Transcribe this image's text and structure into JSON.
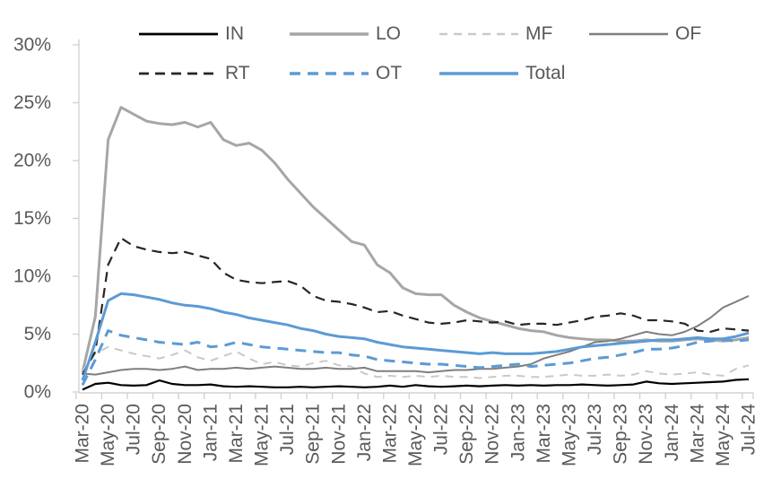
{
  "chart_data": {
    "type": "line",
    "title": "",
    "xlabel": "",
    "ylabel": "",
    "legend_position": "top",
    "grid": false,
    "axis_color": "#d2d2d2",
    "label_color": "#595959",
    "y_axis": {
      "min": 0,
      "max": 30,
      "tick_step": 5,
      "tick_labels": [
        "0%",
        "5%",
        "10%",
        "15%",
        "20%",
        "25%",
        "30%"
      ]
    },
    "x_axis": {
      "tick_every": 2,
      "categories": [
        "Mar-20",
        "Apr-20",
        "May-20",
        "Jun-20",
        "Jul-20",
        "Aug-20",
        "Sep-20",
        "Oct-20",
        "Nov-20",
        "Dec-20",
        "Jan-21",
        "Feb-21",
        "Mar-21",
        "Apr-21",
        "May-21",
        "Jun-21",
        "Jul-21",
        "Aug-21",
        "Sep-21",
        "Oct-21",
        "Nov-21",
        "Dec-21",
        "Jan-22",
        "Feb-22",
        "Mar-22",
        "Apr-22",
        "May-22",
        "Jun-22",
        "Jul-22",
        "Aug-22",
        "Sep-22",
        "Oct-22",
        "Nov-22",
        "Dec-22",
        "Jan-23",
        "Feb-23",
        "Mar-23",
        "Apr-23",
        "May-23",
        "Jun-23",
        "Jul-23",
        "Aug-23",
        "Sep-23",
        "Oct-23",
        "Nov-23",
        "Dec-23",
        "Jan-24",
        "Feb-24",
        "Mar-24",
        "Apr-24",
        "May-24",
        "Jun-24",
        "Jul-24"
      ]
    },
    "series": [
      {
        "name": "IN",
        "color": "#000000",
        "line_style": "solid",
        "width": 2.2,
        "dash": "",
        "values": [
          0.2,
          0.7,
          0.8,
          0.6,
          0.55,
          0.6,
          1.0,
          0.7,
          0.6,
          0.6,
          0.65,
          0.5,
          0.45,
          0.5,
          0.45,
          0.4,
          0.4,
          0.45,
          0.4,
          0.45,
          0.5,
          0.45,
          0.4,
          0.45,
          0.55,
          0.45,
          0.6,
          0.5,
          0.45,
          0.5,
          0.55,
          0.5,
          0.55,
          0.6,
          0.55,
          0.6,
          0.55,
          0.6,
          0.6,
          0.65,
          0.6,
          0.55,
          0.6,
          0.65,
          0.9,
          0.75,
          0.7,
          0.75,
          0.8,
          0.85,
          0.9,
          1.05,
          1.1
        ]
      },
      {
        "name": "LO",
        "color": "#a6a6a6",
        "line_style": "solid",
        "width": 3,
        "dash": "",
        "values": [
          1.7,
          6.5,
          21.8,
          24.6,
          24.0,
          23.4,
          23.2,
          23.1,
          23.3,
          22.9,
          23.3,
          21.8,
          21.3,
          21.5,
          20.9,
          19.8,
          18.4,
          17.2,
          16.0,
          15.0,
          14.0,
          13.0,
          12.7,
          11.0,
          10.3,
          9.0,
          8.5,
          8.4,
          8.4,
          7.5,
          6.9,
          6.4,
          6.1,
          5.8,
          5.5,
          5.3,
          5.2,
          4.9,
          4.7,
          4.6,
          4.5,
          4.5,
          4.4,
          4.4,
          4.5,
          4.4,
          4.4,
          4.5,
          4.6,
          4.5,
          4.4,
          4.5,
          4.7
        ]
      },
      {
        "name": "MF",
        "color": "#c9c9c9",
        "line_style": "dashed",
        "width": 2,
        "dash": "9 7",
        "values": [
          1.8,
          3.3,
          3.9,
          3.6,
          3.3,
          3.1,
          2.9,
          3.2,
          3.6,
          3.0,
          2.7,
          3.1,
          3.5,
          2.9,
          2.4,
          2.6,
          2.3,
          2.2,
          2.5,
          2.7,
          2.3,
          2.2,
          1.6,
          1.3,
          1.4,
          1.3,
          1.4,
          1.3,
          1.4,
          1.3,
          1.3,
          1.2,
          1.3,
          1.4,
          1.4,
          1.3,
          1.3,
          1.4,
          1.5,
          1.4,
          1.4,
          1.5,
          1.4,
          1.5,
          1.8,
          1.6,
          1.5,
          1.6,
          1.7,
          1.5,
          1.4,
          2.0,
          2.3
        ]
      },
      {
        "name": "OF",
        "color": "#7f7f7f",
        "line_style": "solid",
        "width": 2,
        "dash": "",
        "values": [
          1.6,
          1.5,
          1.7,
          1.9,
          2.0,
          2.0,
          1.9,
          2.0,
          2.2,
          1.9,
          2.0,
          2.0,
          2.1,
          2.0,
          2.1,
          2.2,
          2.1,
          2.0,
          2.0,
          2.1,
          2.0,
          2.0,
          2.1,
          1.8,
          1.8,
          1.8,
          1.8,
          1.7,
          1.8,
          1.9,
          1.9,
          2.0,
          2.0,
          2.1,
          2.2,
          2.4,
          2.9,
          3.2,
          3.5,
          3.9,
          4.3,
          4.4,
          4.6,
          4.9,
          5.2,
          5.0,
          4.9,
          5.2,
          5.7,
          6.4,
          7.3,
          7.8,
          8.3
        ]
      },
      {
        "name": "RT",
        "color": "#262626",
        "line_style": "dashed",
        "width": 2.2,
        "dash": "11 7",
        "values": [
          1.5,
          3.5,
          11.0,
          13.3,
          12.6,
          12.3,
          12.1,
          12.0,
          12.1,
          11.8,
          11.5,
          10.3,
          9.7,
          9.5,
          9.4,
          9.5,
          9.6,
          9.2,
          8.3,
          7.9,
          7.8,
          7.6,
          7.3,
          6.9,
          7.0,
          6.6,
          6.3,
          6.0,
          5.9,
          6.0,
          6.2,
          6.1,
          6.0,
          6.1,
          5.8,
          5.9,
          5.9,
          5.8,
          6.0,
          6.2,
          6.5,
          6.6,
          6.8,
          6.6,
          6.2,
          6.2,
          6.1,
          5.9,
          5.3,
          5.2,
          5.5,
          5.4,
          5.3
        ]
      },
      {
        "name": "OT",
        "color": "#5b9bd5",
        "line_style": "dashed",
        "width": 3,
        "dash": "12 8",
        "values": [
          0.6,
          2.8,
          5.3,
          4.9,
          4.7,
          4.5,
          4.3,
          4.2,
          4.1,
          4.3,
          3.9,
          4.0,
          4.3,
          4.1,
          3.9,
          3.8,
          3.7,
          3.6,
          3.5,
          3.4,
          3.4,
          3.2,
          3.1,
          2.8,
          2.7,
          2.6,
          2.5,
          2.4,
          2.4,
          2.3,
          2.2,
          2.1,
          2.2,
          2.3,
          2.4,
          2.2,
          2.3,
          2.4,
          2.5,
          2.7,
          2.9,
          3.0,
          3.2,
          3.4,
          3.7,
          3.7,
          3.8,
          4.0,
          4.3,
          4.4,
          4.5,
          4.4,
          4.5
        ]
      },
      {
        "name": "Total",
        "color": "#5b9bd5",
        "line_style": "solid",
        "width": 3,
        "dash": "",
        "values": [
          1.0,
          4.3,
          7.9,
          8.5,
          8.4,
          8.2,
          8.0,
          7.7,
          7.5,
          7.4,
          7.2,
          6.9,
          6.7,
          6.4,
          6.2,
          6.0,
          5.8,
          5.5,
          5.3,
          5.0,
          4.8,
          4.7,
          4.6,
          4.3,
          4.1,
          3.9,
          3.8,
          3.7,
          3.6,
          3.5,
          3.4,
          3.3,
          3.4,
          3.3,
          3.3,
          3.3,
          3.4,
          3.5,
          3.7,
          3.9,
          4.0,
          4.1,
          4.2,
          4.3,
          4.4,
          4.5,
          4.5,
          4.6,
          4.7,
          4.6,
          4.6,
          4.8,
          5.1
        ]
      }
    ]
  }
}
